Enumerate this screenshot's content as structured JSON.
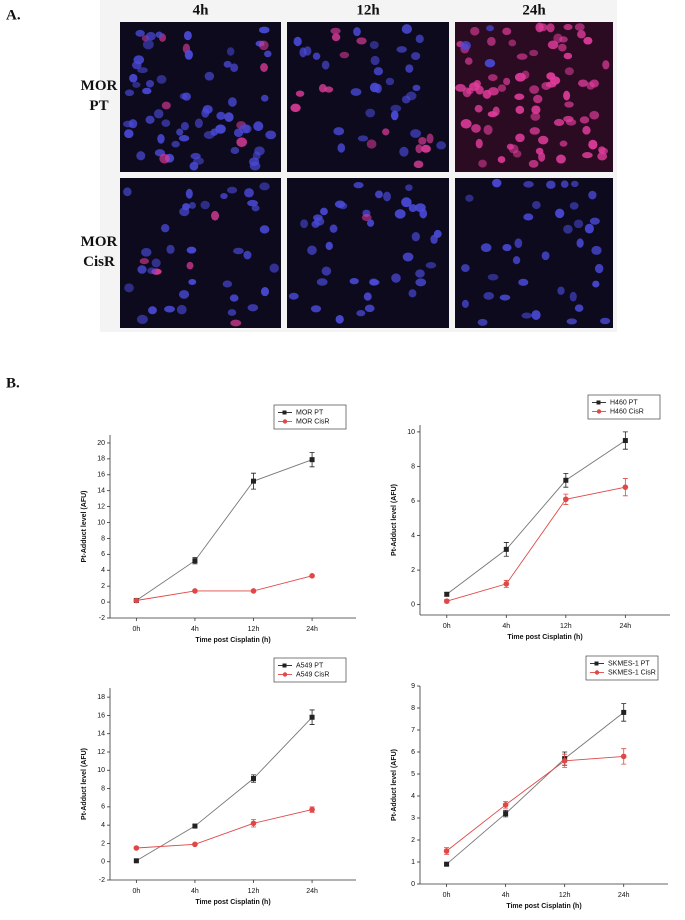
{
  "panel_a": {
    "label": "A.",
    "columns": [
      "4h",
      "12h",
      "24h"
    ],
    "rows": [
      "MOR PT",
      "MOR CisR"
    ]
  },
  "panel_b": {
    "label": "B."
  },
  "chart_data": [
    {
      "type": "line",
      "x_label": "Time post Cisplatin (h)",
      "y_label": "Pt-Adduct level (AFU)",
      "categories": [
        "0h",
        "4h",
        "12h",
        "24h"
      ],
      "ylim": [
        -2,
        21
      ],
      "yticks": [
        -2,
        0,
        2,
        4,
        6,
        8,
        10,
        12,
        14,
        16,
        18,
        20
      ],
      "legend": "upper right",
      "series": [
        {
          "name": "MOR PT",
          "color": "#222222",
          "marker": "square",
          "values": [
            0.2,
            5.2,
            15.2,
            17.9
          ],
          "errors": [
            0.1,
            0.4,
            1.0,
            0.9
          ]
        },
        {
          "name": "MOR CisR",
          "color": "#e04848",
          "marker": "circle",
          "values": [
            0.2,
            1.4,
            1.4,
            3.3
          ],
          "errors": [
            0.1,
            0.1,
            0.1,
            0.1
          ]
        }
      ]
    },
    {
      "type": "line",
      "x_label": "Time post Cisplatin (h)",
      "y_label": "Pt-Adduct level (AFU)",
      "categories": [
        "0h",
        "4h",
        "12h",
        "24h"
      ],
      "ylim": [
        -0.6,
        10.4
      ],
      "yticks": [
        0,
        2,
        4,
        6,
        8,
        10
      ],
      "legend": "upper right",
      "series": [
        {
          "name": "H460 PT",
          "color": "#222222",
          "marker": "square",
          "values": [
            0.6,
            3.2,
            7.2,
            9.5
          ],
          "errors": [
            0.1,
            0.4,
            0.4,
            0.5
          ]
        },
        {
          "name": "H460 CisR",
          "color": "#e04848",
          "marker": "circle",
          "values": [
            0.2,
            1.2,
            6.1,
            6.8
          ],
          "errors": [
            0.1,
            0.2,
            0.3,
            0.5
          ]
        }
      ]
    },
    {
      "type": "line",
      "x_label": "Time post Cisplatin (h)",
      "y_label": "Pt-Adduct level (AFU)",
      "categories": [
        "0h",
        "4h",
        "12h",
        "24h"
      ],
      "ylim": [
        -2,
        19
      ],
      "yticks": [
        -2,
        0,
        2,
        4,
        6,
        8,
        10,
        12,
        14,
        16,
        18
      ],
      "legend": "upper right",
      "series": [
        {
          "name": "A549 PT",
          "color": "#222222",
          "marker": "square",
          "values": [
            0.1,
            3.9,
            9.1,
            15.8
          ],
          "errors": [
            0.1,
            0.2,
            0.4,
            0.8
          ]
        },
        {
          "name": "A549 CisR",
          "color": "#e04848",
          "marker": "circle",
          "values": [
            1.5,
            1.9,
            4.2,
            5.7
          ],
          "errors": [
            0.1,
            0.1,
            0.4,
            0.3
          ]
        }
      ]
    },
    {
      "type": "line",
      "x_label": "Time post Cisplatin (h)",
      "y_label": "Pt-Adduct level (AFU)",
      "categories": [
        "0h",
        "4h",
        "12h",
        "24h"
      ],
      "ylim": [
        0,
        9
      ],
      "yticks": [
        0,
        1,
        2,
        3,
        4,
        5,
        6,
        7,
        8,
        9
      ],
      "legend": "upper right",
      "series": [
        {
          "name": "SKMES-1 PT",
          "color": "#222222",
          "marker": "square",
          "values": [
            0.9,
            3.2,
            5.7,
            7.8
          ],
          "errors": [
            0.05,
            0.15,
            0.3,
            0.4
          ]
        },
        {
          "name": "SKMES-1 CisR",
          "color": "#e04848",
          "marker": "circle",
          "values": [
            1.5,
            3.6,
            5.6,
            5.8
          ],
          "errors": [
            0.15,
            0.15,
            0.3,
            0.35
          ]
        }
      ]
    }
  ]
}
